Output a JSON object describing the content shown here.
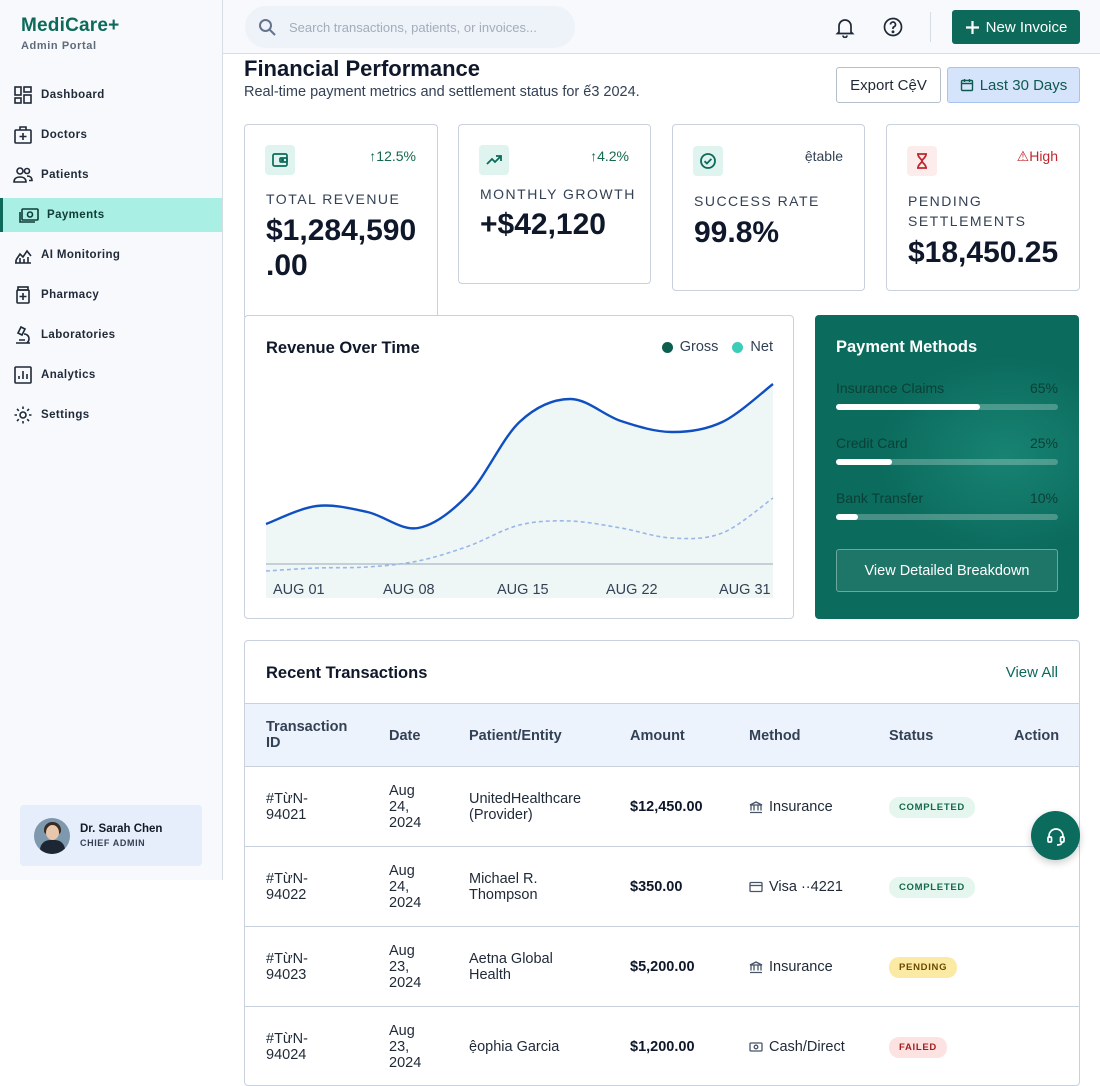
{
  "brand": {
    "name": "MediCare+",
    "subtitle": "Admin Portal"
  },
  "sidebar": {
    "items": [
      {
        "label": "Dashboard",
        "icon": "dashboard-icon"
      },
      {
        "label": "Doctors",
        "icon": "medical-bag-icon"
      },
      {
        "label": "Patients",
        "icon": "users-icon"
      },
      {
        "label": "Payments",
        "icon": "payments-icon",
        "active": true
      },
      {
        "label": "AI Monitoring",
        "icon": "monitoring-icon"
      },
      {
        "label": "Pharmacy",
        "icon": "pharmacy-icon"
      },
      {
        "label": "Laboratories",
        "icon": "microscope-icon"
      },
      {
        "label": "Analytics",
        "icon": "analytics-icon"
      },
      {
        "label": "Settings",
        "icon": "gear-icon"
      }
    ],
    "user": {
      "name": "Dr. Sarah Chen",
      "role": "CHIEF ADMIN"
    }
  },
  "topbar": {
    "search_placeholder": "Search transactions, patients, or invoices...",
    "new_invoice_label": "New Invoice"
  },
  "header": {
    "title": "Financial Performance",
    "subtitle": "Real-time payment metrics and settlement status for ế3 2024.",
    "export_label": "Export CệV",
    "range_label": "Last 30 Days"
  },
  "kpis": [
    {
      "label": "TOTAL REVENUE",
      "value": "$1,284,590.00",
      "value_line1": "$1,284,590",
      "value_line2": ".00",
      "trend": "↑12.5%",
      "icon": "wallet-icon"
    },
    {
      "label": "MONTHLY GROWTH",
      "value": "+$42,120",
      "trend": "↑4.2%",
      "icon": "trending-up-icon"
    },
    {
      "label": "SUCCESS RATE",
      "value": "99.8%",
      "trend": "ệtable",
      "icon": "check-circle-icon"
    },
    {
      "label_line1": "PENDING",
      "label_line2": "SETTLEMENTS",
      "value": "$18,450.25",
      "trend": "⚠High",
      "icon": "hourglass-icon"
    }
  ],
  "colors": {
    "brand": "#0d6a5a",
    "gross": "#0f4fbf",
    "net": "#3ccdb8",
    "trend_up": "#13694d",
    "trend_warn": "#c0262d"
  },
  "chart_data": {
    "type": "area",
    "title": "Revenue Over Time",
    "categories": [
      "AUG 01",
      "AUG 08",
      "AUG 15",
      "AUG 22",
      "AUG 31"
    ],
    "x": [
      0,
      0.1,
      0.2,
      0.3,
      0.4,
      0.5,
      0.6,
      0.7,
      0.8,
      0.9,
      1.0
    ],
    "series": [
      {
        "name": "Gross",
        "values": [
          40,
          58,
          52,
          36,
          70,
          142,
          165,
          143,
          132,
          142,
          180
        ]
      },
      {
        "name": "Net",
        "values": [
          -7,
          -4,
          -3,
          3,
          18,
          39,
          43,
          36,
          26,
          31,
          66
        ]
      }
    ],
    "grid": false,
    "legend": "top-right"
  },
  "payment_methods": {
    "title": "Payment Methods",
    "items": [
      {
        "label": "Insurance Claims",
        "percent_label": "65%",
        "value": 65
      },
      {
        "label": "Credit Card",
        "percent_label": "25%",
        "value": 25
      },
      {
        "label": "Bank Transfer",
        "percent_label": "10%",
        "value": 10
      }
    ],
    "button_label": "View Detailed Breakdown"
  },
  "transactions": {
    "title": "Recent Transactions",
    "view_all": "View All",
    "headers": {
      "id_line1": "Transaction",
      "id_line2": "ID",
      "date": "Date",
      "patient": "Patient/Entity",
      "amount": "Amount",
      "method": "Method",
      "status": "Status",
      "action": "Action"
    },
    "rows": [
      {
        "id1": "#TừN-",
        "id2": "94021",
        "d1": "Aug",
        "d2": "24,",
        "d3": "2024",
        "p1": "UnitedHealthcare",
        "p2": "(Provider)",
        "amount": "$12,450.00",
        "method": "Insurance",
        "method_icon": "bank-icon",
        "status": "COMPLETED"
      },
      {
        "id1": "#TừN-",
        "id2": "94022",
        "d1": "Aug",
        "d2": "24,",
        "d3": "2024",
        "p1": "Michael R.",
        "p2": "Thompson",
        "amount": "$350.00",
        "method": "Visa ··4221",
        "method_icon": "credit-card-icon",
        "status": "COMPLETED"
      },
      {
        "id1": "#TừN-",
        "id2": "94023",
        "d1": "Aug",
        "d2": "23,",
        "d3": "2024",
        "p1": "Aetna Global",
        "p2": "Health",
        "amount": "$5,200.00",
        "method": "Insurance",
        "method_icon": "bank-icon",
        "status": "PENDING"
      },
      {
        "id1": "#TừN-",
        "id2": "94024",
        "d1": "Aug",
        "d2": "23,",
        "d3": "2024",
        "p1": "ệophia Garcia",
        "p2": "",
        "amount": "$1,200.00",
        "method": "Cash/Direct",
        "method_icon": "cash-icon",
        "status": "FAILED"
      }
    ]
  }
}
